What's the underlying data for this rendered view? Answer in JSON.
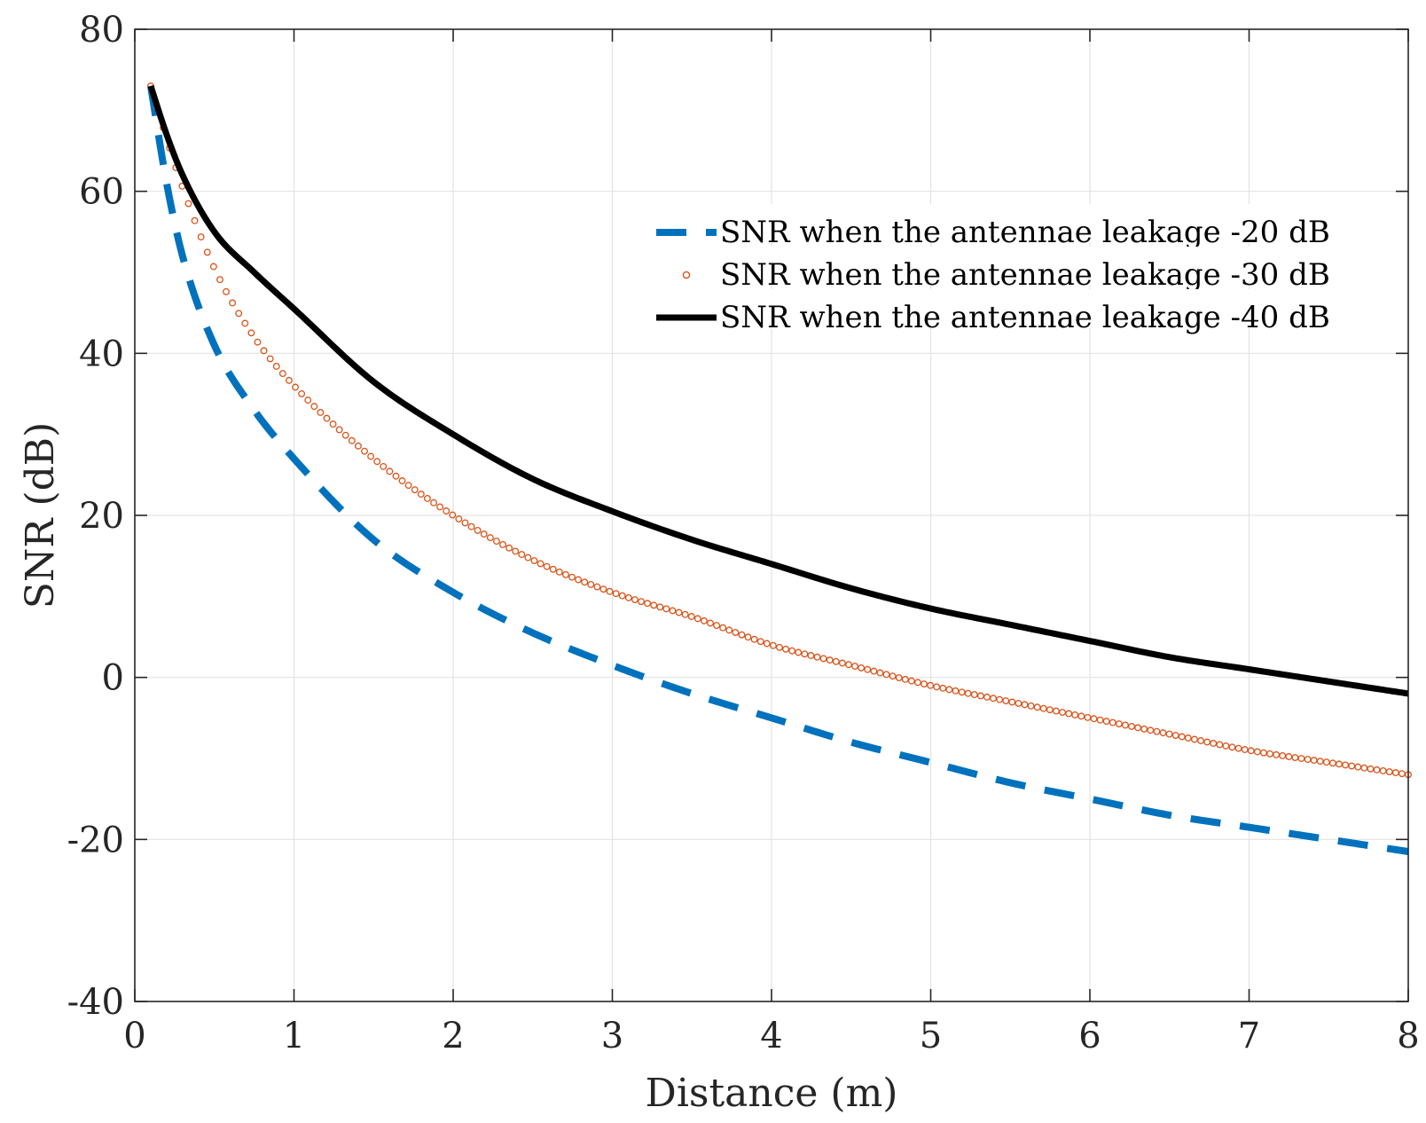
{
  "chart_data": {
    "type": "line",
    "title": "",
    "xlabel": "Distance (m)",
    "ylabel": "SNR (dB)",
    "xlim": [
      0,
      8
    ],
    "ylim": [
      -40,
      80
    ],
    "xticks": [
      0,
      1,
      2,
      3,
      4,
      5,
      6,
      7,
      8
    ],
    "yticks": [
      -40,
      -20,
      0,
      20,
      40,
      60,
      80
    ],
    "xtick_labels": [
      "0",
      "1",
      "2",
      "3",
      "4",
      "5",
      "6",
      "7",
      "8"
    ],
    "ytick_labels": [
      "-40",
      "-20",
      "0",
      "20",
      "40",
      "60",
      "80"
    ],
    "grid": true,
    "box": true,
    "legend": {
      "placement": "top-right",
      "entries": [
        "SNR when the antennae leakage -20 dB",
        "SNR when the antennae leakage -30 dB",
        "SNR when the antennae leakage -40 dB"
      ]
    },
    "x": [
      0.1,
      0.2,
      0.3,
      0.5,
      0.75,
      1,
      1.5,
      2,
      2.5,
      3,
      3.5,
      4,
      4.5,
      5,
      5.5,
      6,
      6.5,
      7,
      7.5,
      8
    ],
    "series": [
      {
        "name": "SNR when the antennae leakage -20 dB",
        "color": "#0072BD",
        "style": "dashed",
        "values": [
          73,
          61,
          52,
          41,
          33,
          27,
          17,
          10.5,
          5.5,
          1.5,
          -2,
          -5,
          -8,
          -10.5,
          -13,
          -15,
          -17,
          -18.5,
          -20,
          -21.5
        ]
      },
      {
        "name": "SNR when the antennae leakage -30 dB",
        "color": "#D95319",
        "style": "circles",
        "values": [
          73,
          66.5,
          60.5,
          50.5,
          42,
          36,
          27,
          20,
          14.5,
          10.5,
          7.5,
          4,
          1.5,
          -1,
          -3,
          -5,
          -7,
          -9,
          -10.5,
          -12
        ]
      },
      {
        "name": "SNR when the antennae leakage -40 dB",
        "color": "#000000",
        "style": "solid",
        "values": [
          73,
          67,
          62,
          55,
          50,
          45.5,
          36.5,
          30,
          24.5,
          20.5,
          17,
          14,
          11,
          8.5,
          6.5,
          4.5,
          2.5,
          1,
          -0.5,
          -2
        ]
      }
    ]
  }
}
